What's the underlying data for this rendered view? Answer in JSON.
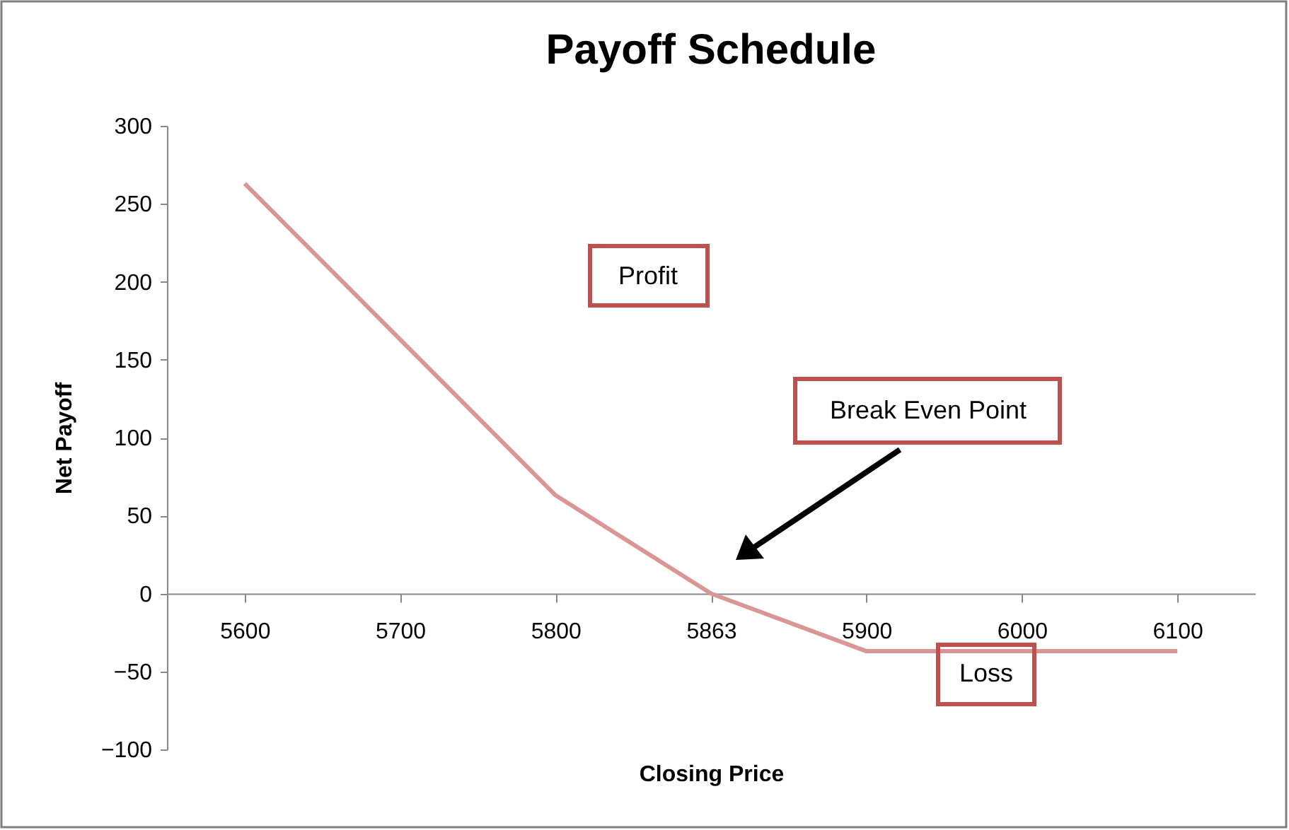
{
  "chart_data": {
    "type": "line",
    "title": "Payoff Schedule",
    "xlabel": "Closing Price",
    "ylabel": "Net Payoff",
    "categories": [
      "5600",
      "5700",
      "5800",
      "5863",
      "5900",
      "6000",
      "6100"
    ],
    "values": [
      263,
      163,
      63,
      0,
      -37,
      -37,
      -37
    ],
    "color": "#d99694",
    "ylim": [
      -100,
      300
    ],
    "yticks": [
      -100,
      -50,
      0,
      50,
      100,
      150,
      200,
      250,
      300
    ],
    "annotations": [
      "Profit",
      "Break Even Point",
      "Loss"
    ]
  }
}
